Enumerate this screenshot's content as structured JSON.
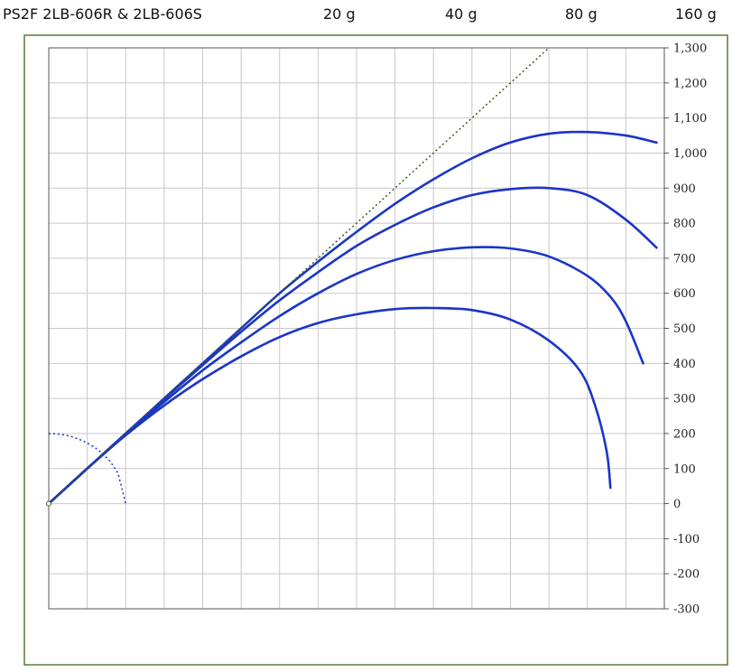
{
  "header": {
    "title": "PS2F 2LB-606R & 2LB-606S",
    "load_labels": [
      "20 g",
      "40 g",
      "80 g",
      "160 g"
    ]
  },
  "colors": {
    "frame": "#5a7a35",
    "grid": "#c8c8c8",
    "curve": "#1a35c8",
    "reference_line": "#3a5a1a"
  },
  "chart_data": {
    "type": "line",
    "title": "",
    "xlabel": "",
    "ylabel": "",
    "xlim": [
      0,
      1600
    ],
    "ylim": [
      -300,
      1300
    ],
    "y_ticks": [
      1300,
      1200,
      1100,
      1000,
      900,
      800,
      700,
      600,
      500,
      400,
      300,
      200,
      100,
      0,
      -100,
      -200,
      -300
    ],
    "y_tick_labels": [
      "1,300",
      "1,200",
      "1,100",
      "1,000",
      "900",
      "800",
      "700",
      "600",
      "500",
      "400",
      "300",
      "200",
      "100",
      "0",
      "-100",
      "-200",
      "-300"
    ],
    "x_gridlines": [
      0,
      100,
      200,
      300,
      400,
      500,
      600,
      700,
      800,
      900,
      1000,
      1100,
      1200,
      1300,
      1400,
      1500,
      1600
    ],
    "grid": true,
    "series": [
      {
        "name": "20 g",
        "style": "solid",
        "x": [
          0,
          100,
          200,
          300,
          400,
          500,
          600,
          700,
          800,
          900,
          1000,
          1100,
          1200,
          1300,
          1380,
          1420,
          1450,
          1460
        ],
        "y": [
          0,
          100,
          195,
          280,
          355,
          420,
          475,
          515,
          540,
          555,
          558,
          552,
          525,
          465,
          380,
          280,
          150,
          45
        ]
      },
      {
        "name": "40 g",
        "style": "solid",
        "x": [
          0,
          100,
          200,
          300,
          400,
          500,
          600,
          700,
          800,
          900,
          1000,
          1100,
          1200,
          1300,
          1400,
          1460,
          1500,
          1545
        ],
        "y": [
          0,
          100,
          198,
          290,
          380,
          460,
          535,
          600,
          655,
          695,
          720,
          731,
          728,
          705,
          650,
          590,
          520,
          400
        ]
      },
      {
        "name": "80 g",
        "style": "solid",
        "x": [
          0,
          100,
          200,
          300,
          400,
          500,
          600,
          700,
          800,
          900,
          1000,
          1100,
          1200,
          1300,
          1400,
          1500,
          1580
        ],
        "y": [
          0,
          100,
          200,
          298,
          395,
          490,
          580,
          660,
          735,
          795,
          845,
          880,
          897,
          900,
          880,
          810,
          730
        ]
      },
      {
        "name": "160 g",
        "style": "solid",
        "x": [
          0,
          100,
          200,
          300,
          400,
          500,
          600,
          700,
          800,
          900,
          1000,
          1100,
          1200,
          1300,
          1400,
          1500,
          1580
        ],
        "y": [
          0,
          100,
          200,
          300,
          400,
          500,
          600,
          690,
          775,
          855,
          925,
          985,
          1030,
          1055,
          1060,
          1050,
          1030
        ]
      },
      {
        "name": "",
        "style": "dotted-reference",
        "x": [
          0,
          1300
        ],
        "y": [
          0,
          1300
        ]
      },
      {
        "name": "",
        "style": "dotted-arc",
        "x": [
          0,
          20,
          40,
          60,
          80,
          100,
          120,
          140,
          160,
          180,
          200
        ],
        "y": [
          200,
          199,
          196,
          191,
          183,
          173,
          160,
          143,
          120,
          87,
          0
        ]
      }
    ]
  }
}
